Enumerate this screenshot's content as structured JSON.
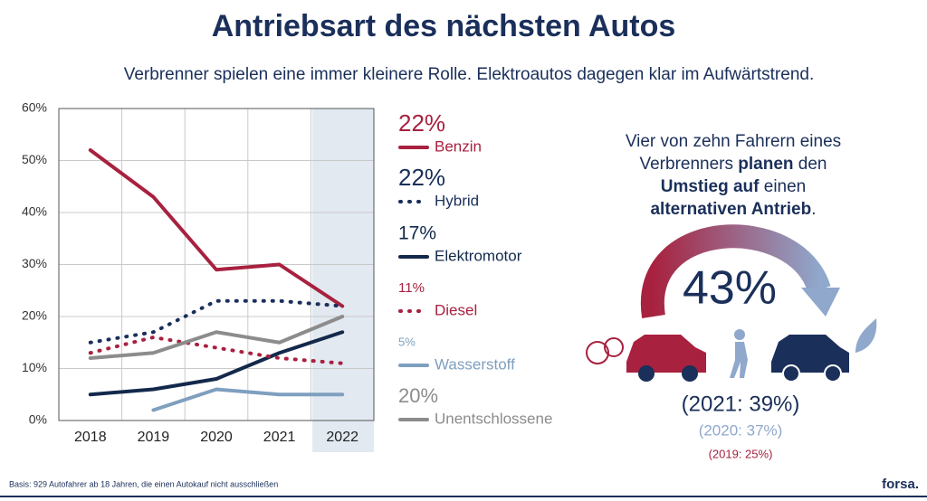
{
  "chart_data": {
    "type": "line",
    "title": "Antriebsart des nächsten Autos",
    "subtitle": "Verbrenner spielen eine immer kleinere Rolle. Elektroautos dagegen klar im Aufwärtstrend.",
    "categories": [
      "2018",
      "2019",
      "2020",
      "2021",
      "2022"
    ],
    "series": [
      {
        "name": "Benzin",
        "color": "#a8213f",
        "dash": false,
        "values": [
          52,
          43,
          29,
          30,
          22
        ],
        "value_labels": [
          null,
          null,
          null,
          null,
          "22%"
        ]
      },
      {
        "name": "Hybrid",
        "color": "#1a2f5a",
        "dash": true,
        "values": [
          15,
          17,
          23,
          23,
          22
        ],
        "value_labels": [
          null,
          null,
          null,
          null,
          "22%"
        ]
      },
      {
        "name": "Elektromotor",
        "color": "#13294b",
        "dash": false,
        "values": [
          5,
          6,
          8,
          13,
          17
        ],
        "value_labels": [
          null,
          null,
          null,
          null,
          "17%"
        ]
      },
      {
        "name": "Diesel",
        "color": "#a8213f",
        "dash": true,
        "values": [
          13,
          16,
          14,
          12,
          11
        ],
        "value_labels": [
          null,
          null,
          null,
          null,
          "11%"
        ]
      },
      {
        "name": "Wasserstoff",
        "color": "#7f9fbf",
        "dash": false,
        "values": [
          null,
          2,
          6,
          5,
          5
        ],
        "value_labels": [
          null,
          null,
          null,
          null,
          "5%"
        ]
      },
      {
        "name": "Unentschlossene",
        "color": "#8c8c8c",
        "dash": false,
        "values": [
          12,
          13,
          17,
          15,
          20
        ],
        "value_labels": [
          null,
          null,
          null,
          null,
          "20%"
        ]
      }
    ],
    "ylim": [
      0,
      60
    ],
    "yticks": [
      {
        "value": 0,
        "label": "0%"
      },
      {
        "value": 10,
        "label": "10%"
      },
      {
        "value": 20,
        "label": "20%"
      },
      {
        "value": 30,
        "label": "30%"
      },
      {
        "value": 40,
        "label": "40%"
      },
      {
        "value": 50,
        "label": "50%"
      },
      {
        "value": 60,
        "label": "60%"
      }
    ],
    "grid": true
  },
  "infobox": {
    "lines": [
      [
        {
          "text": "Vier von zehn Fahrern eines",
          "bold": false
        }
      ],
      [
        {
          "text": "Verbrenners ",
          "bold": false
        },
        {
          "text": "planen",
          "bold": true
        },
        {
          "text": " den",
          "bold": false
        }
      ],
      [
        {
          "text": "Umstieg auf",
          "bold": true
        },
        {
          "text": " einen",
          "bold": false
        }
      ],
      [
        {
          "text": "alternativen Antrieb",
          "bold": true
        },
        {
          "text": ".",
          "bold": false
        }
      ]
    ],
    "headline": "43%",
    "previous": [
      "(2021: 39%)",
      "(2020: 37%)",
      "(2019: 25%)"
    ]
  },
  "footnote": "Basis: 929 Autofahrer ab 18 Jahren, die einen Autokauf nicht ausschließen",
  "brand": "forsa."
}
